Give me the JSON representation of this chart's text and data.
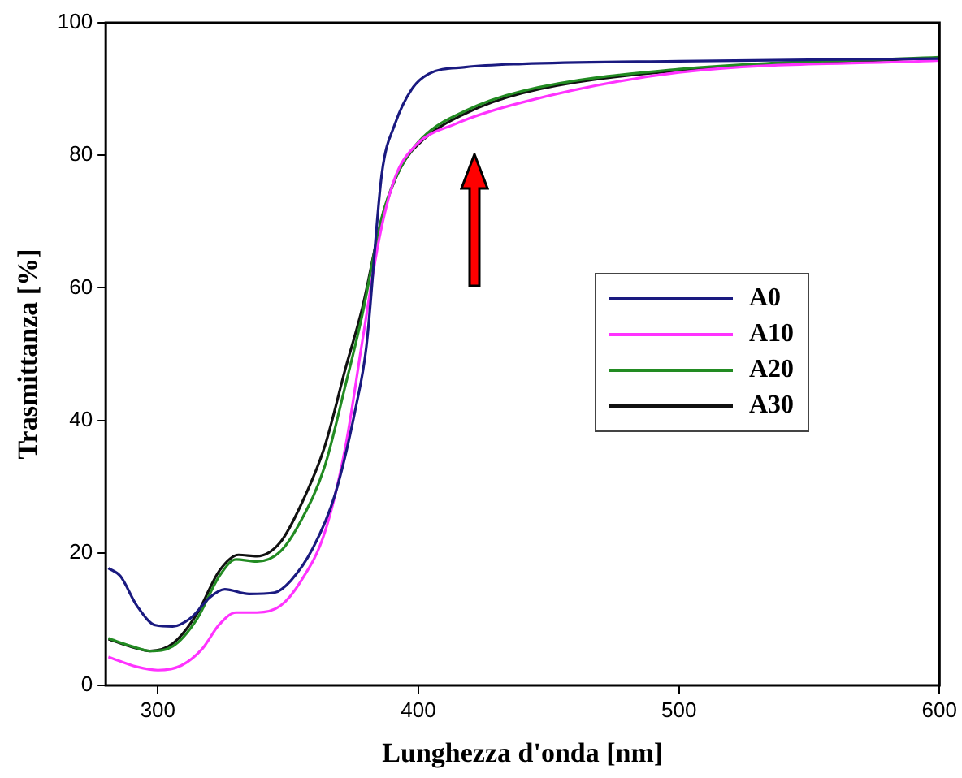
{
  "chart_data": {
    "type": "line",
    "xlabel": "Lunghezza d'onda [nm]",
    "ylabel": "Trasmittanza [%]",
    "xlim": [
      280,
      600
    ],
    "xticks": [
      300,
      400,
      500,
      600
    ],
    "ylim": [
      0,
      100
    ],
    "yticks": [
      0,
      20,
      40,
      60,
      80,
      100
    ],
    "grid": false,
    "legend": "right",
    "marker": "none",
    "line_style": "solid",
    "series": [
      {
        "name": "A0",
        "color": "#1a1a80",
        "x": [
          281,
          285.6,
          292,
          299,
          305.7,
          313,
          320,
          325.7,
          335,
          344.7,
          351,
          359.5,
          368,
          376,
          380,
          386,
          391,
          397.5,
          404,
          418,
          440,
          500,
          600
        ],
        "values": [
          17.7,
          16.5,
          12,
          9.1,
          8.9,
          10.3,
          13.3,
          14.5,
          13.8,
          14,
          15.8,
          20.7,
          28.8,
          42,
          51,
          77.3,
          84.7,
          90,
          92.3,
          93.3,
          93.8,
          94.2,
          94.6
        ]
      },
      {
        "name": "A10",
        "color": "#ff33ff",
        "x": [
          281,
          292,
          300,
          309,
          317,
          323.6,
          330,
          338,
          347,
          355,
          364,
          372,
          378.5,
          385,
          391,
          399,
          414,
          440,
          500,
          600
        ],
        "values": [
          4.3,
          2.8,
          2.3,
          3,
          5.5,
          9.2,
          11,
          11,
          12,
          15.8,
          23,
          36,
          52,
          67.5,
          76.6,
          81.5,
          84.7,
          88,
          92.5,
          94.3
        ]
      },
      {
        "name": "A20",
        "color": "#228b22",
        "x": [
          281,
          290,
          297,
          305.7,
          315,
          323.6,
          330,
          338,
          347,
          355,
          364,
          372,
          378.5,
          386,
          393,
          401.7,
          418,
          440,
          500,
          600
        ],
        "values": [
          7.1,
          5.9,
          5.2,
          5.9,
          10,
          16.5,
          19,
          18.7,
          20.2,
          24.9,
          33,
          45.3,
          56,
          70.7,
          78,
          82.7,
          86.7,
          89.7,
          93,
          94.8
        ]
      },
      {
        "name": "A30",
        "color": "#111111",
        "x": [
          281,
          290,
          297,
          305.7,
          315,
          323.6,
          331,
          338,
          347,
          355,
          364,
          372,
          378.5,
          386,
          393,
          401.7,
          418,
          440,
          500,
          600
        ],
        "values": [
          7,
          5.8,
          5.2,
          6.3,
          10.8,
          17.3,
          19.7,
          19.5,
          21.6,
          27.3,
          36,
          47.8,
          57,
          70.5,
          78,
          82.3,
          86.3,
          89.4,
          92.8,
          94.7
        ]
      }
    ]
  }
}
